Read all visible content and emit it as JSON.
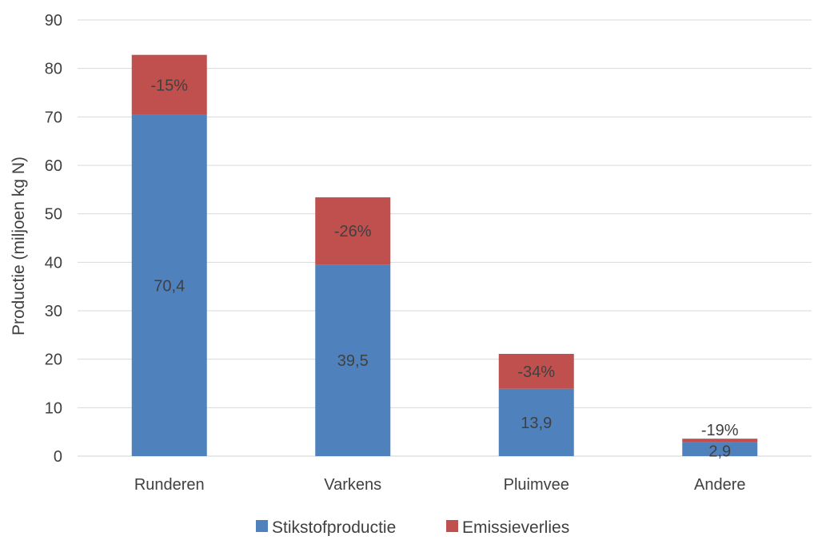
{
  "chart_data": {
    "type": "bar",
    "stacked": true,
    "title": "",
    "xlabel": "",
    "ylabel": "Productie (miljoen kg N)",
    "ylim": [
      0,
      90
    ],
    "yticks": [
      0,
      10,
      20,
      30,
      40,
      50,
      60,
      70,
      80,
      90
    ],
    "grid": true,
    "legend_position": "bottom",
    "categories": [
      "Runderen",
      "Varkens",
      "Pluimvee",
      "Andere"
    ],
    "series": [
      {
        "name": "Stikstofproductie",
        "color": "#4f81bd",
        "values": [
          70.4,
          39.5,
          13.9,
          2.9
        ],
        "labels": [
          "70,4",
          "39,5",
          "13,9",
          "2,9"
        ]
      },
      {
        "name": "Emissieverlies",
        "color": "#c0504d",
        "values": [
          12.4,
          13.9,
          7.2,
          0.7
        ],
        "labels": [
          "-15%",
          "-26%",
          "-34%",
          "-19%"
        ]
      }
    ]
  }
}
